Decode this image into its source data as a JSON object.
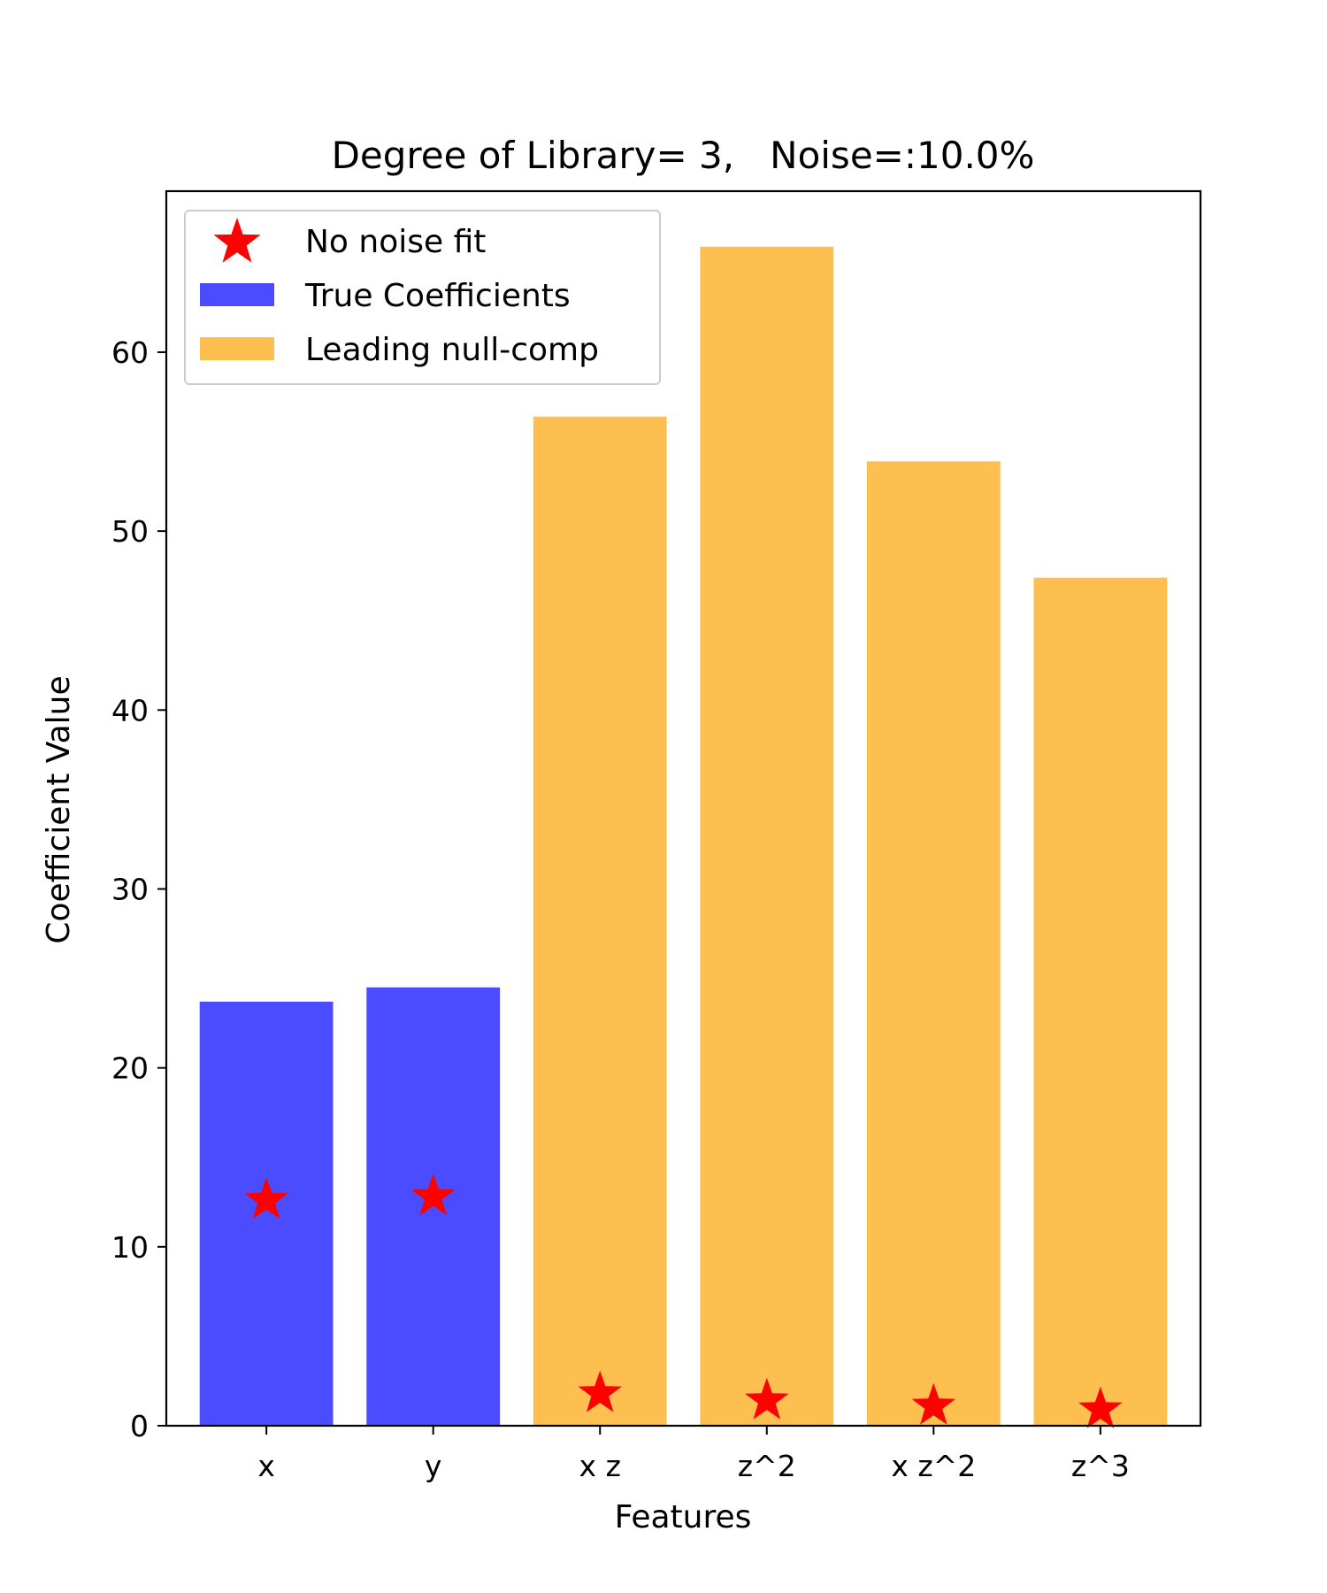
{
  "chart_data": {
    "type": "bar",
    "title": "Degree of Library= 3,   Noise=:10.0%",
    "xlabel": "Features",
    "ylabel": "Coefficient Value",
    "categories": [
      "x",
      "y",
      "x z",
      "z^2",
      "x z^2",
      "z^3"
    ],
    "ylim": [
      0,
      69
    ],
    "yticks": [
      0,
      10,
      20,
      30,
      40,
      50,
      60
    ],
    "grid": false,
    "legend_position": "top-left",
    "series": [
      {
        "name": "True Coefficients",
        "kind": "bar",
        "color": "#4b4bff",
        "values": [
          23.7,
          24.5,
          null,
          null,
          null,
          null
        ]
      },
      {
        "name": "Leading null-comp",
        "kind": "bar",
        "color": "#fcbf50",
        "values": [
          null,
          null,
          56.4,
          65.9,
          53.9,
          47.4
        ]
      },
      {
        "name": "No noise fit",
        "kind": "marker",
        "marker": "star",
        "color": "#ff0000",
        "values": [
          12.6,
          12.8,
          1.8,
          1.4,
          1.1,
          0.9
        ]
      }
    ]
  }
}
